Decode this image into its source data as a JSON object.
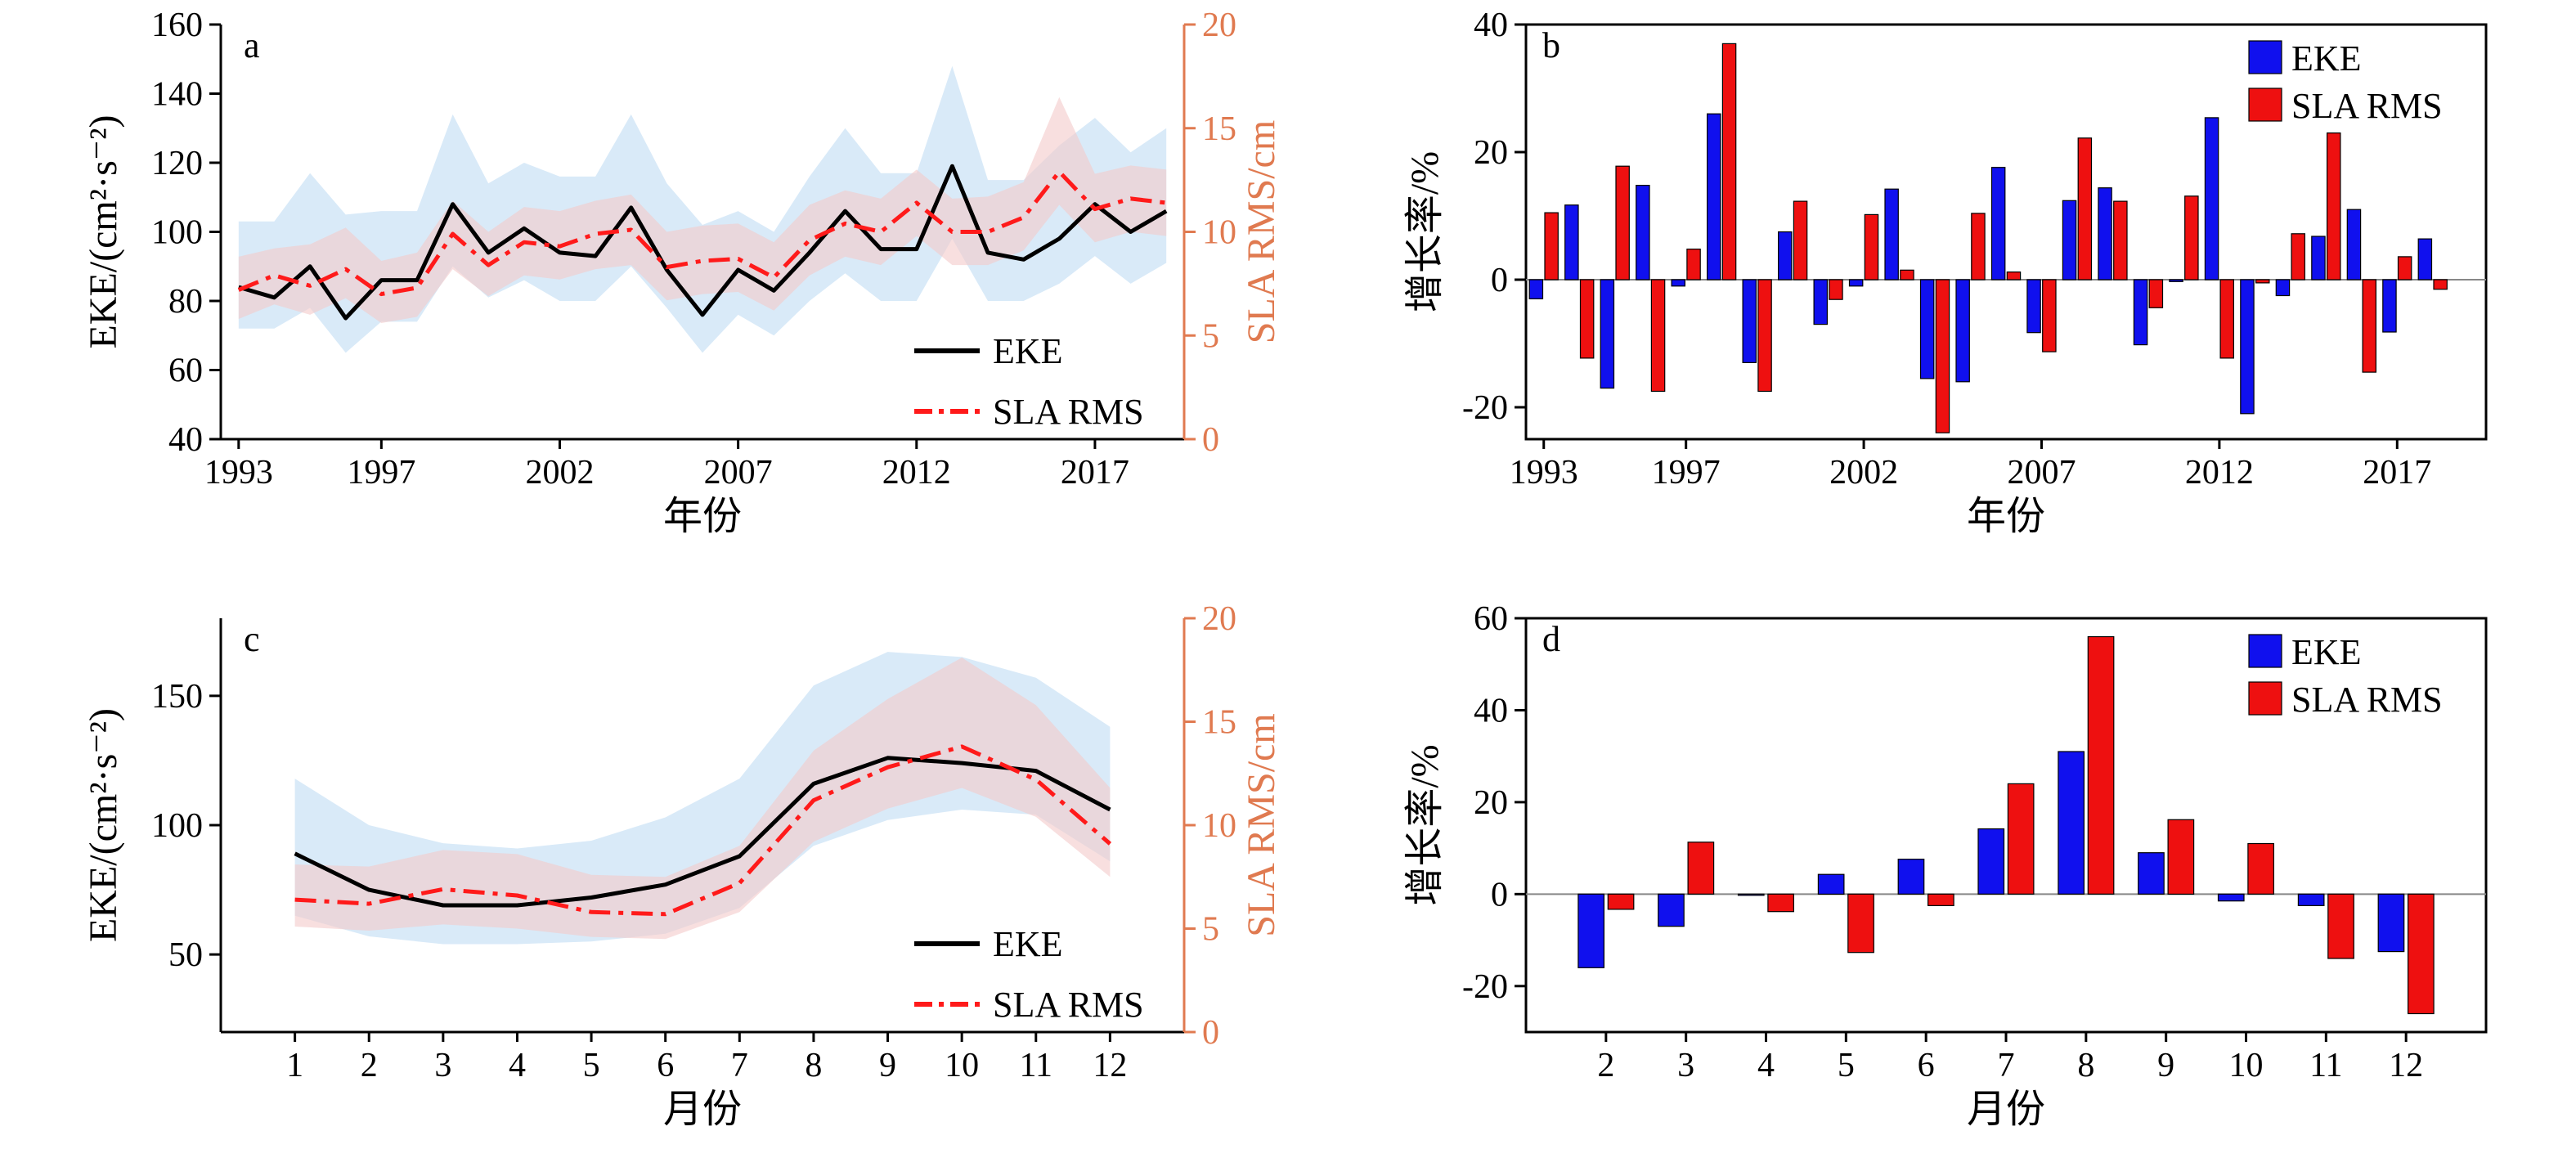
{
  "colors": {
    "eke": "#000000",
    "sla": "#ff1a1a",
    "eke_band": "#d9eaf8",
    "sla_band": "#f3c9c9",
    "bar_eke": "#1010ee",
    "bar_sla": "#ee1010",
    "axis_right": "#e07a50"
  },
  "chart_data": [
    {
      "panel": "a",
      "type": "line",
      "xlabel": "年份",
      "ylabel_left": "EKE/(cm²·s⁻²)",
      "ylabel_right": "SLA RMS/cm",
      "xlim": [
        1992.5,
        2019.5
      ],
      "ylim_left": [
        40,
        160
      ],
      "ylim_right": [
        0,
        20
      ],
      "xticks": [
        1993,
        1997,
        2002,
        2007,
        2012,
        2017
      ],
      "yticks_left": [
        40,
        60,
        80,
        100,
        120,
        140,
        160
      ],
      "yticks_right": [
        0,
        5,
        10,
        15,
        20
      ],
      "legend": [
        "EKE",
        "SLA RMS"
      ],
      "legend_position": "bottom-right",
      "x": [
        1993,
        1994,
        1995,
        1996,
        1997,
        1998,
        1999,
        2000,
        2001,
        2002,
        2003,
        2004,
        2005,
        2006,
        2007,
        2008,
        2009,
        2010,
        2011,
        2012,
        2013,
        2014,
        2015,
        2016,
        2017,
        2018,
        2019
      ],
      "series": [
        {
          "name": "EKE",
          "axis": "left",
          "values": [
            84,
            81,
            90,
            75,
            86,
            86,
            108,
            94,
            101,
            94,
            93,
            107,
            89,
            76,
            89,
            83,
            94,
            106,
            95,
            95,
            119,
            94,
            92,
            98,
            108,
            100,
            106
          ],
          "upper": [
            103,
            103,
            117,
            105,
            106,
            106,
            134,
            114,
            120,
            116,
            116,
            134,
            114,
            102,
            106,
            100,
            116,
            130,
            117,
            117,
            148,
            115,
            115,
            125,
            133,
            123,
            130
          ],
          "lower": [
            72,
            72,
            78,
            65,
            74,
            74,
            90,
            81,
            86,
            80,
            80,
            90,
            78,
            65,
            76,
            70,
            80,
            88,
            80,
            80,
            98,
            80,
            80,
            85,
            93,
            85,
            91
          ]
        },
        {
          "name": "SLA RMS",
          "axis": "right",
          "values": [
            7.2,
            7.9,
            7.4,
            8.2,
            7.0,
            7.3,
            9.9,
            8.4,
            9.5,
            9.3,
            9.9,
            10.1,
            8.3,
            8.6,
            8.7,
            7.8,
            9.6,
            10.4,
            10.0,
            11.4,
            10.0,
            10.0,
            10.7,
            12.9,
            11.1,
            11.6,
            11.4
          ],
          "upper": [
            8.8,
            9.2,
            9.4,
            10.2,
            8.6,
            9.0,
            11.5,
            10.0,
            11.2,
            11.0,
            11.5,
            11.8,
            10.0,
            10.3,
            10.4,
            9.5,
            11.3,
            12.0,
            11.6,
            13.0,
            11.6,
            11.7,
            12.4,
            16.5,
            12.8,
            13.2,
            13.0
          ],
          "lower": [
            5.8,
            6.5,
            6.0,
            6.8,
            5.6,
            5.9,
            8.2,
            6.9,
            7.9,
            7.7,
            8.2,
            8.4,
            6.7,
            7.0,
            7.1,
            6.2,
            7.9,
            8.8,
            8.4,
            9.8,
            8.4,
            8.4,
            9.1,
            11.3,
            9.5,
            10.0,
            9.8
          ]
        }
      ]
    },
    {
      "panel": "b",
      "type": "bar",
      "xlabel": "年份",
      "ylabel": "增长率/%",
      "xlim": [
        1992.5,
        2019.5
      ],
      "ylim": [
        -25,
        40
      ],
      "xticks": [
        1993,
        1997,
        2002,
        2007,
        2012,
        2017
      ],
      "yticks": [
        -20,
        0,
        20,
        40
      ],
      "legend": [
        "EKE",
        "SLA RMS"
      ],
      "legend_position": "top-right",
      "categories": [
        1993,
        1994,
        1995,
        1996,
        1997,
        1998,
        1999,
        2000,
        2001,
        2002,
        2003,
        2004,
        2005,
        2006,
        2007,
        2008,
        2009,
        2010,
        2011,
        2012,
        2013,
        2014,
        2015,
        2016,
        2017,
        2018
      ],
      "series": [
        {
          "name": "EKE",
          "values": [
            -3,
            11.7,
            -17,
            14.8,
            -1,
            26,
            -13,
            7.5,
            -7,
            -1,
            14.2,
            -15.5,
            -16,
            17.6,
            -8.3,
            12.4,
            14.4,
            -10.2,
            -0.3,
            25.4,
            -21,
            -2.5,
            6.8,
            11,
            -8.2,
            6.4
          ]
        },
        {
          "name": "SLA RMS",
          "values": [
            10.5,
            -12.3,
            17.8,
            -17.5,
            4.8,
            37,
            -17.5,
            12.3,
            -3.1,
            10.2,
            1.5,
            -24,
            10.4,
            1.2,
            -11.3,
            22.2,
            12.3,
            -4.4,
            13.1,
            -12.3,
            -0.5,
            7.2,
            23,
            -14.5,
            3.6,
            -1.5
          ]
        }
      ]
    },
    {
      "panel": "c",
      "type": "line",
      "xlabel": "月份",
      "ylabel_left": "EKE/(cm²·s⁻²)",
      "ylabel_right": "SLA RMS/cm",
      "xlim": [
        0,
        13
      ],
      "ylim_left": [
        20,
        180
      ],
      "ylim_right": [
        0,
        20
      ],
      "xticks": [
        1,
        2,
        3,
        4,
        5,
        6,
        7,
        8,
        9,
        10,
        11,
        12
      ],
      "yticks_left": [
        50,
        100,
        150
      ],
      "yticks_right": [
        0,
        5,
        10,
        15,
        20
      ],
      "legend": [
        "EKE",
        "SLA RMS"
      ],
      "legend_position": "bottom-right",
      "x": [
        1,
        2,
        3,
        4,
        5,
        6,
        7,
        8,
        9,
        10,
        11,
        12
      ],
      "series": [
        {
          "name": "EKE",
          "axis": "left",
          "values": [
            89,
            75,
            69,
            69,
            72,
            77,
            88,
            116,
            126,
            124,
            121,
            106
          ],
          "upper": [
            118,
            100,
            93,
            91,
            94,
            103,
            118,
            154,
            167,
            165,
            157,
            138
          ],
          "lower": [
            65,
            57,
            54,
            54,
            55,
            58,
            68,
            92,
            102,
            106,
            104,
            86
          ]
        },
        {
          "name": "SLA RMS",
          "axis": "right",
          "values": [
            6.4,
            6.2,
            6.9,
            6.6,
            5.8,
            5.7,
            7.2,
            11.2,
            12.8,
            13.8,
            12.2,
            9.1
          ],
          "upper": [
            8.1,
            8.0,
            8.8,
            8.6,
            7.6,
            7.5,
            9.0,
            13.6,
            16.1,
            18.1,
            15.8,
            11.8
          ],
          "lower": [
            5.1,
            4.9,
            5.2,
            5.0,
            4.6,
            4.5,
            5.8,
            9.2,
            10.8,
            11.8,
            10.4,
            7.5
          ]
        }
      ]
    },
    {
      "panel": "d",
      "type": "bar",
      "xlabel": "月份",
      "ylabel": "增长率/%",
      "xlim": [
        1,
        13
      ],
      "ylim": [
        -30,
        60
      ],
      "xticks": [
        2,
        3,
        4,
        5,
        6,
        7,
        8,
        9,
        10,
        11,
        12
      ],
      "yticks": [
        -20,
        0,
        20,
        40,
        60
      ],
      "legend": [
        "EKE",
        "SLA RMS"
      ],
      "legend_position": "top-right",
      "categories": [
        2,
        3,
        4,
        5,
        6,
        7,
        8,
        9,
        10,
        11,
        12
      ],
      "series": [
        {
          "name": "EKE",
          "values": [
            -16,
            -7,
            0,
            4.3,
            7.6,
            14.2,
            31,
            9,
            -1.5,
            -2.5,
            -12.5
          ]
        },
        {
          "name": "SLA RMS",
          "values": [
            -3.3,
            11.3,
            -3.8,
            -12.7,
            -2.5,
            24,
            56,
            16.2,
            11,
            -14,
            -26
          ]
        }
      ]
    }
  ]
}
